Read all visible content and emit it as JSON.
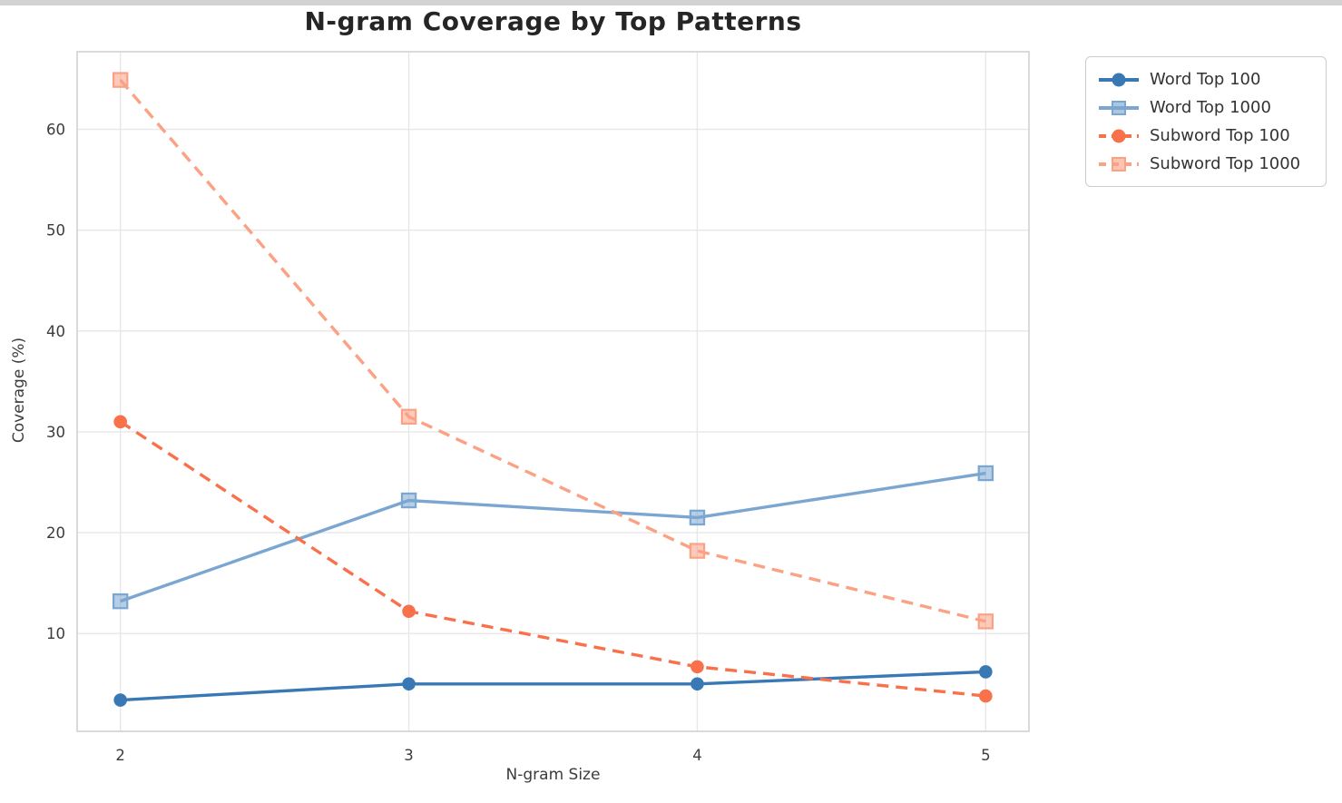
{
  "chart_data": {
    "type": "line",
    "title": "N-gram Coverage by Top Patterns",
    "xlabel": "N-gram Size",
    "ylabel": "Coverage (%)",
    "x": [
      2,
      3,
      4,
      5
    ],
    "xticks": [
      2,
      3,
      4,
      5
    ],
    "yticks": [
      10,
      20,
      30,
      40,
      50,
      60
    ],
    "xlim": [
      1.85,
      5.15
    ],
    "ylim": [
      0.3,
      67.7
    ],
    "grid": true,
    "legend_position": "outside-top-right",
    "series": [
      {
        "name": "Word Top 100",
        "color": "#3878b4",
        "line": "solid",
        "marker": "circle",
        "values": [
          3.4,
          5.0,
          5.0,
          6.2
        ]
      },
      {
        "name": "Word Top 1000",
        "color": "#7aa6d1",
        "line": "solid",
        "marker": "square",
        "values": [
          13.2,
          23.2,
          21.5,
          25.9
        ]
      },
      {
        "name": "Subword Top 100",
        "color": "#f8714b",
        "line": "dashed",
        "marker": "circle",
        "values": [
          31.0,
          12.2,
          6.7,
          3.8
        ]
      },
      {
        "name": "Subword Top 1000",
        "color": "#fba184",
        "line": "dashed",
        "marker": "square",
        "values": [
          64.9,
          31.5,
          18.2,
          11.2
        ]
      }
    ]
  },
  "colors": {
    "grid": "#e7e7e7",
    "spine": "#d6d6d6",
    "tick_text": "#3c3c3c",
    "title_text": "#252525",
    "legend_border": "#cccccc",
    "background": "#ffffff"
  }
}
